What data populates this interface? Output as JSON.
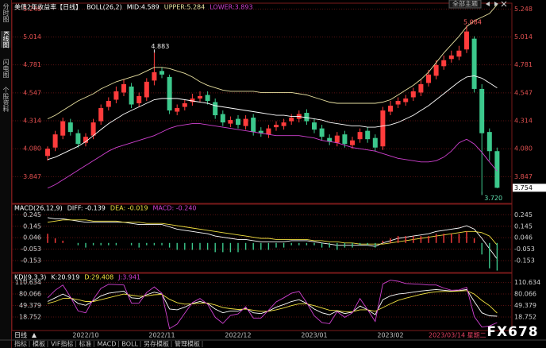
{
  "ui": {
    "sidebar": [
      "分时图",
      "K线图",
      "闪电图",
      "个股资料"
    ],
    "sidebar_active": 1,
    "period": "日线",
    "cursor_label": "2023/03/14 星期二",
    "theme_button": "全部主题",
    "watermark": "FX678",
    "tabs": [
      "指标",
      "模板",
      "VIF指标",
      "标准",
      "MACD",
      "BOLL",
      "另存模板",
      "管理模板"
    ]
  },
  "chart_data": [
    {
      "type": "candlestick",
      "title": "美债2年收益率【日线】",
      "indicator": "BOLL(26,2)",
      "up_color": "#ff3c3c",
      "down_color": "#3cc88c",
      "tick_color": "#e05050",
      "ylim": [
        3.63,
        5.29
      ],
      "yticks": [
        5.248,
        5.014,
        4.781,
        4.547,
        4.314,
        {
          "value": 4.08,
          "label": "4.080"
        },
        3.847
      ],
      "open": [
        4.02,
        4.09,
        4.19,
        4.3,
        4.21,
        4.13,
        4.19,
        4.31,
        4.43,
        4.49,
        4.55,
        4.6,
        4.46,
        4.51,
        4.65,
        4.73,
        4.68,
        4.39,
        4.43,
        4.47,
        4.5,
        4.53,
        4.47,
        4.37,
        4.29,
        4.33,
        4.27,
        4.34,
        4.23,
        4.2,
        4.26,
        4.27,
        4.31,
        4.33,
        4.38,
        4.3,
        4.25,
        4.17,
        4.13,
        4.2,
        4.11,
        4.16,
        4.23,
        4.17,
        4.1,
        4.39,
        4.45,
        4.47,
        4.51,
        4.55,
        4.63,
        4.69,
        4.77,
        4.83,
        4.85,
        4.91,
        5.0,
        4.58,
        4.22,
        4.06
      ],
      "high": [
        4.1,
        4.23,
        4.34,
        4.33,
        4.24,
        4.21,
        4.33,
        4.45,
        4.51,
        4.6,
        4.66,
        4.63,
        4.55,
        4.67,
        4.883,
        4.76,
        4.7,
        4.45,
        4.49,
        4.54,
        4.56,
        4.56,
        4.5,
        4.4,
        4.35,
        4.36,
        4.36,
        4.37,
        4.26,
        4.28,
        4.31,
        4.33,
        4.37,
        4.4,
        4.41,
        4.33,
        4.28,
        4.2,
        4.22,
        4.23,
        4.18,
        4.25,
        4.26,
        4.2,
        4.43,
        4.48,
        4.51,
        4.53,
        4.59,
        4.66,
        4.74,
        4.82,
        4.86,
        4.9,
        4.94,
        5.084,
        5.02,
        4.62,
        4.25,
        4.09
      ],
      "low": [
        3.98,
        4.06,
        4.16,
        4.19,
        4.09,
        4.1,
        4.16,
        4.28,
        4.4,
        4.46,
        4.52,
        4.42,
        4.43,
        4.48,
        4.61,
        4.67,
        4.37,
        4.36,
        4.4,
        4.44,
        4.47,
        4.45,
        4.33,
        4.27,
        4.26,
        4.25,
        4.24,
        4.19,
        4.18,
        4.17,
        4.23,
        4.24,
        4.28,
        4.3,
        4.28,
        4.21,
        4.15,
        4.11,
        4.1,
        4.09,
        4.08,
        4.13,
        4.13,
        4.06,
        4.07,
        4.36,
        4.42,
        4.44,
        4.48,
        4.52,
        4.6,
        4.66,
        4.74,
        4.8,
        4.82,
        4.88,
        4.55,
        3.72,
        3.98,
        3.75
      ],
      "close": [
        4.08,
        4.2,
        4.31,
        4.22,
        4.12,
        4.18,
        4.3,
        4.42,
        4.48,
        4.56,
        4.62,
        4.45,
        4.52,
        4.64,
        4.72,
        4.7,
        4.4,
        4.42,
        4.46,
        4.5,
        4.52,
        4.48,
        4.36,
        4.3,
        4.32,
        4.28,
        4.33,
        4.22,
        4.21,
        4.25,
        4.28,
        4.3,
        4.34,
        4.37,
        4.31,
        4.24,
        4.18,
        4.14,
        4.19,
        4.12,
        4.15,
        4.22,
        4.16,
        4.09,
        4.4,
        4.44,
        4.48,
        4.5,
        4.56,
        4.62,
        4.7,
        4.78,
        4.82,
        4.86,
        4.9,
        5.06,
        4.58,
        4.21,
        4.06,
        3.754
      ],
      "annotations": [
        {
          "value": 4.883,
          "label": "4.883",
          "color": "#e8e8e8"
        },
        {
          "value": 5.084,
          "label": "5.084",
          "color": "#ff6060"
        },
        {
          "value": 3.72,
          "label": "3.720",
          "color": "#60e0b0"
        }
      ],
      "series": [
        {
          "name": "MID:4.589",
          "color": "#ffffff",
          "values": [
            3.99,
            4.01,
            4.04,
            4.07,
            4.1,
            4.14,
            4.19,
            4.24,
            4.29,
            4.33,
            4.37,
            4.4,
            4.43,
            4.46,
            4.49,
            4.5,
            4.5,
            4.5,
            4.49,
            4.48,
            4.47,
            4.46,
            4.44,
            4.43,
            4.42,
            4.41,
            4.4,
            4.39,
            4.38,
            4.37,
            4.36,
            4.36,
            4.35,
            4.35,
            4.34,
            4.33,
            4.32,
            4.3,
            4.29,
            4.28,
            4.27,
            4.27,
            4.26,
            4.26,
            4.27,
            4.28,
            4.3,
            4.33,
            4.36,
            4.4,
            4.44,
            4.49,
            4.54,
            4.59,
            4.64,
            4.68,
            4.69,
            4.67,
            4.63,
            4.589
          ]
        },
        {
          "name": "UPPER:5.284",
          "color": "#e8e0a0",
          "values": [
            4.33,
            4.36,
            4.4,
            4.44,
            4.48,
            4.51,
            4.54,
            4.58,
            4.61,
            4.64,
            4.66,
            4.68,
            4.7,
            4.73,
            4.76,
            4.76,
            4.75,
            4.73,
            4.71,
            4.68,
            4.64,
            4.61,
            4.59,
            4.57,
            4.56,
            4.56,
            4.56,
            4.56,
            4.55,
            4.55,
            4.55,
            4.55,
            4.55,
            4.54,
            4.53,
            4.51,
            4.49,
            4.47,
            4.46,
            4.46,
            4.46,
            4.46,
            4.46,
            4.46,
            4.47,
            4.49,
            4.53,
            4.57,
            4.61,
            4.66,
            4.72,
            4.8,
            4.88,
            4.95,
            5.02,
            5.1,
            5.15,
            5.18,
            5.21,
            5.284
          ]
        },
        {
          "name": "LOWER:3.893",
          "color": "#d040d0",
          "values": [
            3.75,
            3.78,
            3.82,
            3.86,
            3.9,
            3.94,
            3.98,
            4.02,
            4.06,
            4.09,
            4.11,
            4.13,
            4.15,
            4.17,
            4.19,
            4.22,
            4.25,
            4.27,
            4.28,
            4.29,
            4.29,
            4.28,
            4.27,
            4.26,
            4.25,
            4.24,
            4.23,
            4.22,
            4.21,
            4.2,
            4.19,
            4.19,
            4.19,
            4.19,
            4.18,
            4.17,
            4.15,
            4.14,
            4.13,
            4.11,
            4.09,
            4.08,
            4.07,
            4.06,
            4.04,
            4.02,
            4.0,
            3.99,
            3.98,
            3.97,
            3.97,
            3.98,
            4.01,
            4.06,
            4.13,
            4.16,
            4.12,
            4.05,
            3.97,
            3.893
          ]
        }
      ]
    },
    {
      "type": "macd",
      "indicator": "MACD(26,12,9)",
      "tick_color": "#d0d0d0",
      "ylim": [
        -0.25,
        0.33
      ],
      "yticks": [
        0.245,
        0.145,
        0.046,
        -0.053,
        -0.153
      ],
      "series": [
        {
          "name": "DIFF: -0.139",
          "color": "#ffffff",
          "values": [
            0.22,
            0.21,
            0.21,
            0.2,
            0.19,
            0.18,
            0.18,
            0.18,
            0.18,
            0.18,
            0.18,
            0.17,
            0.16,
            0.16,
            0.16,
            0.16,
            0.14,
            0.12,
            0.11,
            0.1,
            0.09,
            0.08,
            0.06,
            0.05,
            0.04,
            0.03,
            0.03,
            0.02,
            0.01,
            0.01,
            0.01,
            0.01,
            0.02,
            0.02,
            0.02,
            0.01,
            0.0,
            -0.01,
            -0.02,
            -0.02,
            -0.02,
            -0.02,
            -0.02,
            -0.03,
            0.0,
            0.02,
            0.04,
            0.05,
            0.06,
            0.07,
            0.08,
            0.1,
            0.11,
            0.12,
            0.13,
            0.15,
            0.12,
            0.04,
            -0.05,
            -0.139
          ]
        },
        {
          "name": "DEA: -0.019",
          "color": "#f0e040",
          "values": [
            0.18,
            0.19,
            0.2,
            0.2,
            0.2,
            0.2,
            0.19,
            0.19,
            0.19,
            0.19,
            0.18,
            0.18,
            0.18,
            0.17,
            0.17,
            0.17,
            0.16,
            0.15,
            0.14,
            0.13,
            0.12,
            0.11,
            0.1,
            0.09,
            0.08,
            0.07,
            0.06,
            0.05,
            0.04,
            0.04,
            0.03,
            0.03,
            0.03,
            0.03,
            0.03,
            0.02,
            0.02,
            0.01,
            0.01,
            0.0,
            0.0,
            -0.01,
            -0.01,
            -0.01,
            -0.01,
            0.0,
            0.01,
            0.02,
            0.03,
            0.04,
            0.05,
            0.06,
            0.07,
            0.08,
            0.09,
            0.1,
            0.1,
            0.09,
            0.06,
            -0.019
          ]
        },
        {
          "name": "MACD: -0.240",
          "color": "#d040d0",
          "kind": "bar",
          "up_color": "#ff3c3c",
          "down_color": "#3cc88c",
          "values": [
            0.08,
            0.04,
            0.02,
            0.0,
            -0.02,
            -0.04,
            -0.02,
            -0.02,
            -0.02,
            -0.02,
            0.0,
            -0.02,
            -0.04,
            -0.02,
            -0.02,
            -0.02,
            -0.04,
            -0.06,
            -0.06,
            -0.06,
            -0.06,
            -0.06,
            -0.08,
            -0.08,
            -0.08,
            -0.08,
            -0.06,
            -0.06,
            -0.06,
            -0.06,
            -0.04,
            -0.04,
            -0.02,
            -0.02,
            -0.02,
            -0.02,
            -0.04,
            -0.04,
            -0.06,
            -0.04,
            -0.04,
            -0.02,
            -0.02,
            -0.04,
            0.02,
            0.04,
            0.06,
            0.06,
            0.06,
            0.06,
            0.06,
            0.08,
            0.08,
            0.08,
            0.08,
            0.1,
            0.04,
            -0.1,
            -0.22,
            -0.24
          ]
        }
      ]
    },
    {
      "type": "line",
      "indicator": "KDJ(9,3,3)",
      "tick_color": "#d0d0d0",
      "ylim": [
        -15,
        133
      ],
      "yticks": [
        110.634,
        80.066,
        49.379,
        18.752
      ],
      "categories": [
        null,
        null,
        null,
        null,
        null,
        "2022/10",
        null,
        null,
        null,
        null,
        null,
        null,
        null,
        null,
        null,
        "2022/11",
        null,
        null,
        null,
        null,
        null,
        null,
        null,
        null,
        null,
        "2022/12",
        null,
        null,
        null,
        null,
        null,
        null,
        null,
        null,
        null,
        "2023/01",
        null,
        null,
        null,
        null,
        null,
        null,
        null,
        null,
        null,
        "2023/02",
        null,
        null,
        null,
        null,
        null,
        null,
        null,
        null,
        null,
        null,
        null,
        null,
        null,
        null
      ],
      "series": [
        {
          "name": "K:20.919",
          "color": "#ffffff",
          "values": [
            60,
            70,
            80,
            70,
            55,
            50,
            62,
            75,
            82,
            85,
            88,
            70,
            68,
            78,
            85,
            80,
            40,
            38,
            45,
            55,
            60,
            55,
            40,
            30,
            35,
            35,
            42,
            30,
            28,
            35,
            45,
            52,
            60,
            65,
            55,
            40,
            30,
            25,
            35,
            28,
            32,
            48,
            38,
            25,
            65,
            75,
            80,
            82,
            85,
            88,
            90,
            92,
            90,
            88,
            89,
            92,
            60,
            30,
            22,
            20.919
          ]
        },
        {
          "name": "D:29.408",
          "color": "#f0e040",
          "values": [
            55,
            60,
            68,
            69,
            65,
            60,
            60,
            65,
            70,
            75,
            80,
            77,
            74,
            75,
            78,
            79,
            66,
            57,
            53,
            54,
            56,
            56,
            51,
            44,
            41,
            39,
            40,
            37,
            34,
            34,
            38,
            43,
            49,
            54,
            54,
            49,
            43,
            37,
            36,
            33,
            33,
            38,
            38,
            34,
            44,
            54,
            63,
            69,
            74,
            79,
            83,
            86,
            87,
            87,
            88,
            89,
            80,
            63,
            49,
            29.408
          ]
        },
        {
          "name": "J:3.941",
          "color": "#d040d0",
          "values": [
            70,
            90,
            104,
            72,
            35,
            30,
            66,
            95,
            106,
            105,
            104,
            56,
            56,
            84,
            99,
            82,
            -12,
            0,
            29,
            57,
            68,
            53,
            18,
            2,
            23,
            27,
            46,
            16,
            16,
            37,
            59,
            70,
            82,
            87,
            57,
            22,
            4,
            1,
            33,
            18,
            30,
            68,
            38,
            7,
            107,
            117,
            114,
            108,
            107,
            106,
            104,
            104,
            96,
            90,
            91,
            98,
            20,
            -8,
            -5,
            3.941
          ]
        }
      ]
    }
  ]
}
